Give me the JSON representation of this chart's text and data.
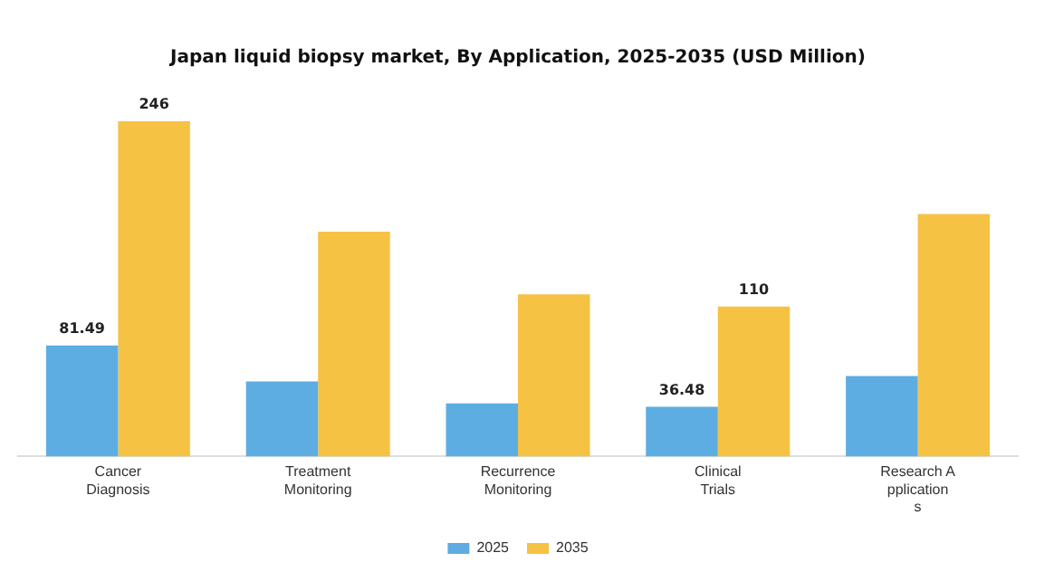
{
  "chart_data": {
    "type": "bar",
    "title": "Japan liquid biopsy market, By Application, 2025-2035 (USD Million)",
    "categories": [
      "Cancer Diagnosis",
      "Treatment Monitoring",
      "Recurrence Monitoring",
      "Clinical Trials",
      "Research Applications"
    ],
    "series": [
      {
        "name": "2025",
        "color": "#5dade2",
        "values": [
          81.49,
          55,
          39,
          36.48,
          59
        ],
        "value_labels": [
          "81.49",
          null,
          null,
          "36.48",
          null
        ]
      },
      {
        "name": "2035",
        "color": "#f6c244",
        "values": [
          246,
          165,
          119,
          110,
          178
        ],
        "value_labels": [
          "246",
          null,
          null,
          "110",
          null
        ]
      }
    ],
    "legend": "bottom",
    "grid": false
  }
}
